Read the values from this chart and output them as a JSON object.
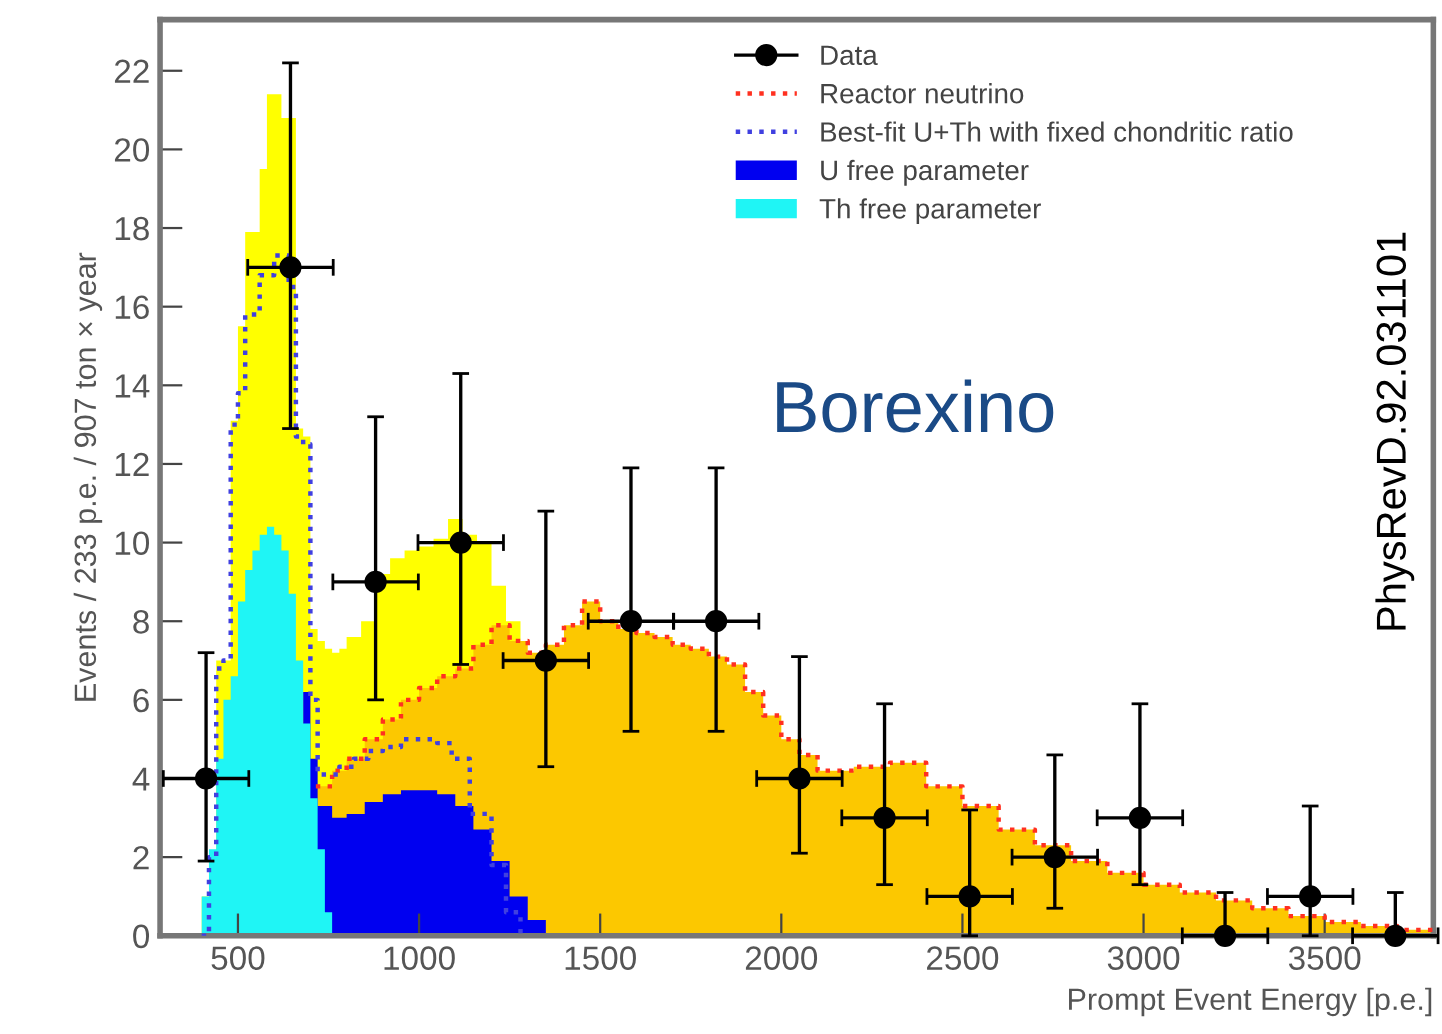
{
  "chart_data": {
    "type": "area",
    "xlabel": "Prompt Event Energy [p.e.]",
    "ylabel": "Events / 233 p.e. / 907 ton × year",
    "annotations": [
      "Borexino",
      "PhysRevD.92.031101"
    ],
    "xlim": [
      285,
      3800
    ],
    "ylim": [
      0,
      23.3
    ],
    "xticks": [
      500,
      1000,
      1500,
      2000,
      2500,
      3000,
      3500
    ],
    "yticks": [
      0,
      2,
      4,
      6,
      8,
      10,
      12,
      14,
      16,
      18,
      20,
      22
    ],
    "grid": false,
    "legend": "top right",
    "series": [
      {
        "color": "#ffff00",
        "x": [
          400,
          420,
          440,
          460,
          480,
          500,
          520,
          540,
          560,
          580,
          600,
          620,
          640,
          660,
          680,
          700,
          720,
          740,
          760,
          780,
          800,
          840,
          880,
          920,
          960,
          1000,
          1040,
          1080,
          1120,
          1160,
          1200,
          1240,
          1280
        ],
        "values": [
          1.0,
          2.1,
          7.0,
          7.0,
          13.1,
          15.5,
          17.9,
          17.9,
          19.5,
          21.4,
          21.4,
          20.8,
          20.8,
          12.9,
          12.7,
          7.8,
          7.5,
          7.3,
          7.2,
          7.3,
          7.6,
          8.0,
          9.2,
          9.6,
          9.8,
          9.9,
          10.1,
          10.6,
          10.2,
          10.0,
          8.9,
          8.0,
          0
        ]
      },
      {
        "color": "#fcc800",
        "x": [
          715,
          760,
          800,
          850,
          900,
          950,
          1000,
          1050,
          1100,
          1150,
          1200,
          1250,
          1300,
          1350,
          1400,
          1450,
          1500,
          1550,
          1600,
          1650,
          1700,
          1750,
          1800,
          1850,
          1900,
          1950,
          2000,
          2050,
          2100,
          2200,
          2300,
          2400,
          2500,
          2600,
          2700,
          2800,
          2900,
          3000,
          3100,
          3200,
          3300,
          3400,
          3500,
          3600,
          3700,
          3800
        ],
        "values": [
          3.8,
          4.2,
          4.5,
          5.0,
          5.5,
          6.0,
          6.3,
          6.6,
          6.8,
          7.4,
          7.9,
          7.5,
          7.2,
          7.4,
          7.9,
          8.5,
          8.0,
          7.8,
          7.7,
          7.6,
          7.4,
          7.3,
          7.1,
          6.9,
          6.2,
          5.6,
          5.0,
          4.6,
          4.2,
          4.3,
          4.4,
          3.8,
          3.3,
          2.7,
          2.3,
          1.9,
          1.6,
          1.3,
          1.1,
          0.9,
          0.7,
          0.5,
          0.35,
          0.25,
          0.15,
          0.1
        ]
      },
      {
        "name": "U free parameter",
        "color": "#0000f0",
        "x": [
          680,
          700,
          720,
          760,
          800,
          850,
          900,
          950,
          1000,
          1050,
          1100,
          1150,
          1200,
          1250,
          1300,
          1350
        ],
        "values": [
          6.2,
          4.5,
          3.3,
          3.0,
          3.1,
          3.4,
          3.6,
          3.7,
          3.7,
          3.6,
          3.3,
          2.7,
          1.9,
          1.0,
          0.4,
          0
        ]
      },
      {
        "name": "Th free parameter",
        "color": "#1ff5f5",
        "x": [
          380,
          400,
          420,
          440,
          460,
          480,
          500,
          520,
          540,
          560,
          580,
          600,
          620,
          640,
          660,
          680,
          700,
          720,
          740,
          760
        ],
        "values": [
          0,
          1.0,
          2.2,
          4.5,
          6.0,
          6.6,
          8.5,
          9.3,
          9.8,
          10.2,
          10.4,
          10.2,
          9.8,
          8.7,
          7.0,
          5.4,
          3.5,
          2.2,
          0.6,
          0
        ]
      },
      {
        "type": "step",
        "name": "Reactor neutrino",
        "color": "#ff3020",
        "line_style": "dotted",
        "x": [
          715,
          760,
          800,
          850,
          900,
          950,
          1000,
          1050,
          1100,
          1150,
          1200,
          1250,
          1300,
          1350,
          1400,
          1450,
          1500,
          1550,
          1600,
          1650,
          1700,
          1750,
          1800,
          1850,
          1900,
          1950,
          2000,
          2050,
          2100,
          2200,
          2300,
          2400,
          2500,
          2600,
          2700,
          2800,
          2900,
          3000,
          3100,
          3200,
          3300,
          3400,
          3500,
          3600,
          3700,
          3800
        ],
        "values": [
          3.8,
          4.2,
          4.5,
          5.0,
          5.5,
          6.0,
          6.3,
          6.6,
          6.8,
          7.4,
          7.9,
          7.5,
          7.2,
          7.4,
          7.9,
          8.5,
          8.0,
          7.8,
          7.7,
          7.6,
          7.4,
          7.3,
          7.1,
          6.9,
          6.2,
          5.6,
          5.0,
          4.6,
          4.2,
          4.3,
          4.4,
          3.8,
          3.3,
          2.7,
          2.3,
          1.9,
          1.6,
          1.3,
          1.1,
          0.9,
          0.7,
          0.5,
          0.35,
          0.25,
          0.15,
          0.1
        ]
      },
      {
        "type": "step",
        "name": "Best-fit U+Th with fixed chondritic ratio",
        "color": "#4040e0",
        "line_style": "dotted",
        "x": [
          400,
          420,
          440,
          460,
          480,
          500,
          520,
          540,
          560,
          580,
          600,
          620,
          640,
          660,
          680,
          700,
          720,
          740,
          780,
          820,
          860,
          900,
          950,
          1000,
          1050,
          1090,
          1140,
          1200,
          1240,
          1280
        ],
        "values": [
          0,
          2.0,
          6.8,
          7.0,
          13.0,
          13.8,
          15.8,
          15.8,
          16.8,
          16.8,
          17.3,
          17.3,
          16.5,
          12.7,
          12.5,
          6.0,
          4.1,
          4.1,
          4.3,
          4.5,
          4.7,
          4.8,
          5.0,
          5.0,
          4.9,
          4.5,
          3.1,
          1.8,
          0.6,
          0
        ]
      },
      {
        "type": "scatter",
        "name": "Data",
        "color": "#000000",
        "marker": "circle",
        "x": [
          412,
          645,
          880,
          1115,
          1350,
          1585,
          1820,
          2050,
          2285,
          2520,
          2755,
          2990,
          3225,
          3460,
          3695
        ],
        "values": [
          4,
          17,
          9,
          10,
          7,
          8,
          8,
          4,
          3,
          1,
          2,
          3,
          0,
          1,
          0
        ],
        "errors": [
          [
            1.9,
            7.2
          ],
          [
            12.9,
            22.2
          ],
          [
            6.0,
            13.2
          ],
          [
            6.9,
            14.3
          ],
          [
            4.3,
            10.8
          ],
          [
            5.2,
            11.9
          ],
          [
            5.2,
            11.9
          ],
          [
            2.1,
            7.1
          ],
          [
            1.3,
            5.9
          ],
          [
            0,
            3.2
          ],
          [
            0.7,
            4.6
          ],
          [
            1.3,
            5.9
          ],
          [
            0,
            1.1
          ],
          [
            0,
            3.3
          ],
          [
            0,
            1.1
          ]
        ],
        "xerrors": [
          118,
          118,
          118,
          118,
          118,
          118,
          118,
          118,
          118,
          118,
          118,
          118,
          118,
          118,
          118
        ]
      }
    ]
  }
}
